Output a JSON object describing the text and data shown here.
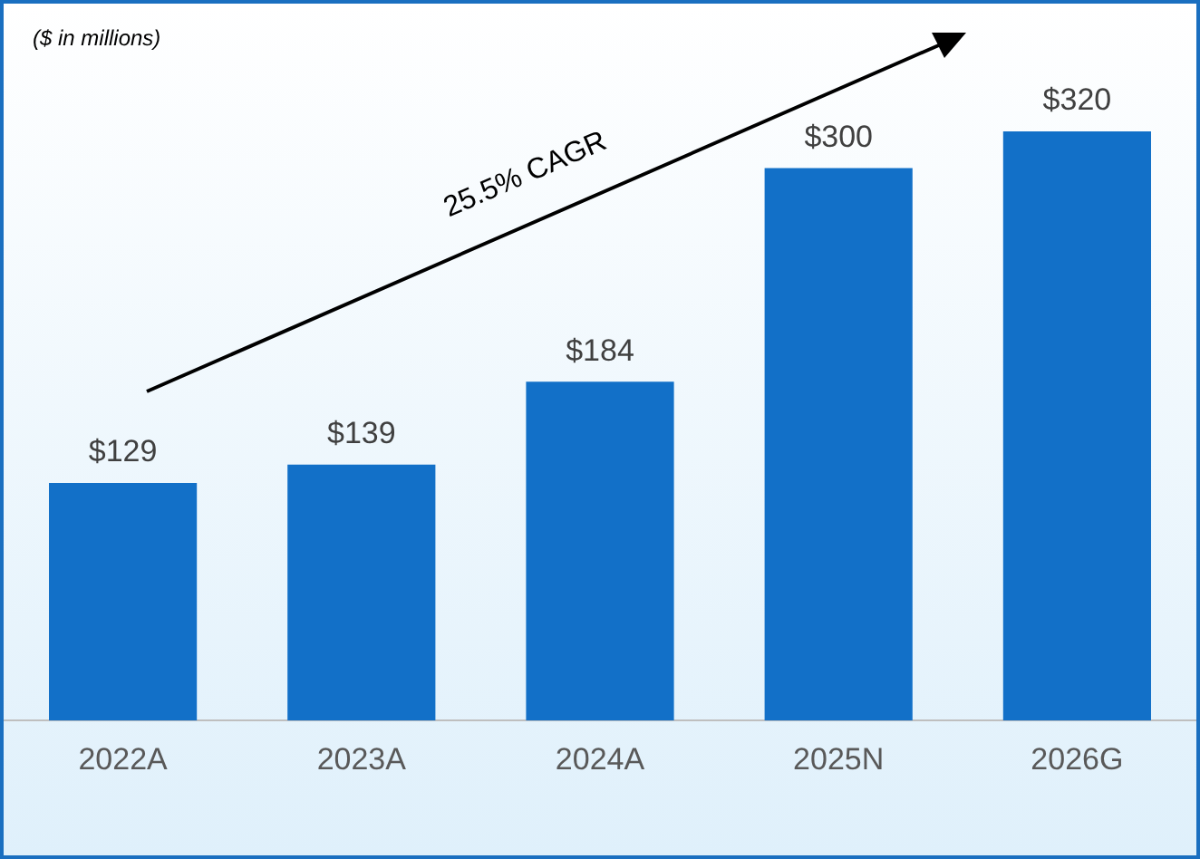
{
  "chart_data": {
    "type": "bar",
    "categories": [
      "2022A",
      "2023A",
      "2024A",
      "2025N",
      "2026G"
    ],
    "values": [
      129,
      139,
      184,
      300,
      320
    ],
    "color": "#1270c8",
    "value_labels": [
      "$129",
      "$139",
      "$184",
      "$300",
      "$320"
    ],
    "annotations": [
      "($ in millions)",
      "25.5% CAGR"
    ],
    "grid": false,
    "legend": false,
    "tick_labels": "x"
  }
}
